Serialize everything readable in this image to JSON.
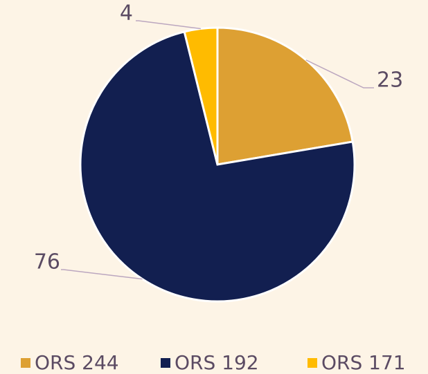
{
  "chart_data": {
    "type": "pie",
    "categories": [
      "ORS 244",
      "ORS 192",
      "ORS 171"
    ],
    "values": [
      23,
      76,
      4
    ],
    "colors": [
      "#dda033",
      "#121f50",
      "#ffbb00"
    ]
  }
}
